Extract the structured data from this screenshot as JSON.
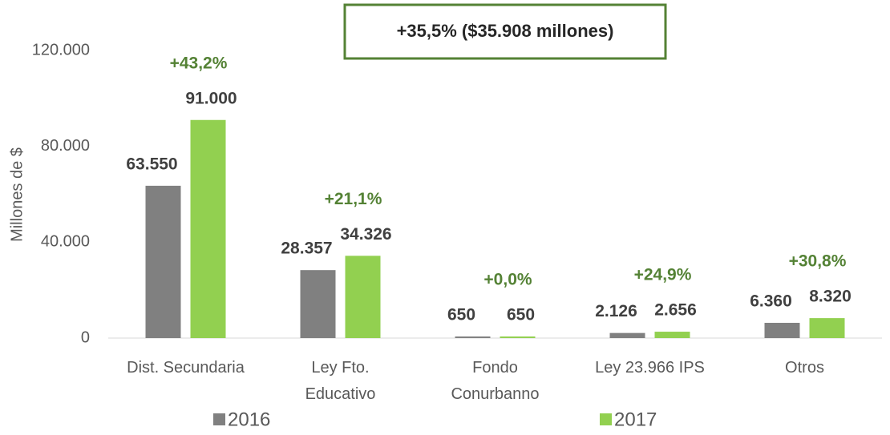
{
  "chart_data": {
    "type": "bar",
    "title": "+35,5% ($35.908 millones)",
    "y_label": "Millones de $",
    "categories": [
      "Dist. Secundaria",
      "Ley Fto.\nEducativo",
      "Fondo\nConurbanno",
      "Ley 23.966 IPS",
      "Otros"
    ],
    "series": [
      {
        "name": "2016",
        "color": "#808080",
        "values": [
          63550,
          28357,
          650,
          2126,
          6360
        ],
        "value_labels": [
          "63.550",
          "28.357",
          "650",
          "2.126",
          "6.360"
        ]
      },
      {
        "name": "2017",
        "color": "#92d050",
        "values": [
          91000,
          34326,
          650,
          2656,
          8320
        ],
        "value_labels": [
          "91.000",
          "34.326",
          "650",
          "2.656",
          "8.320"
        ]
      }
    ],
    "annotations": [
      "+43,2%",
      "+21,1%",
      "+0,0%",
      "+24,9%",
      "+30,8%"
    ],
    "annotation_color": "#548235",
    "ylim": [
      0,
      120000
    ],
    "yticks": [
      0,
      {
        "value": 40000,
        "label": "40.000"
      },
      {
        "value": 80000,
        "label": "80.000"
      },
      {
        "value": 120000,
        "label": "120.000"
      }
    ],
    "grid": false,
    "legend": "bottom"
  }
}
